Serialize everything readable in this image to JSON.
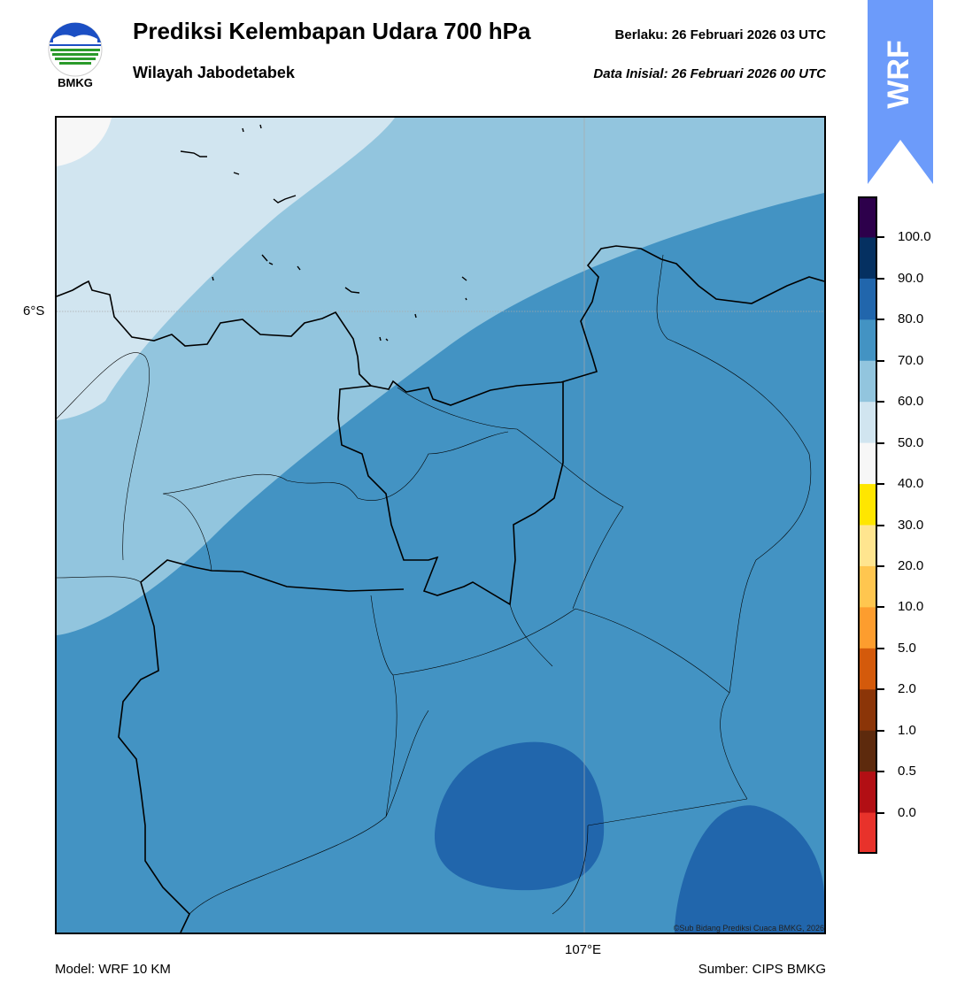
{
  "header": {
    "title": "Prediksi Kelembapan Udara 700 hPa",
    "subtitle": "Wilayah Jabodetabek",
    "valid_label": "Berlaku:  26 Februari 2026 03 UTC",
    "init_label": "Data Inisial:  26 Februari 2026 00 UTC"
  },
  "logo": {
    "text": "BMKG",
    "icon": "bmkg-logo-icon"
  },
  "badge": {
    "text": "WRF",
    "color": "#6c9bfa"
  },
  "map": {
    "lat_label": "6°S",
    "lon_label": "107°E",
    "credit": "©Sub Bidang Prediksi Cuaca BMKG, 2026",
    "fill_colors": {
      "very_light": "#f7f7f7",
      "light": "#d1e5f0",
      "mid": "#92c5de",
      "dark": "#4393c3",
      "darker": "#2166ac"
    }
  },
  "colorbar": {
    "labels": [
      "100.0",
      "90.0",
      "80.0",
      "70.0",
      "60.0",
      "50.0",
      "40.0",
      "30.0",
      "20.0",
      "10.0",
      "5.0",
      "2.0",
      "1.0",
      "0.5",
      "0.0"
    ],
    "colors": [
      "#2d004b",
      "#053061",
      "#2166ac",
      "#4393c3",
      "#92c5de",
      "#d1e5f0",
      "#f7f7f7",
      "#ffe600",
      "#ffe58f",
      "#ffc64f",
      "#fd9d2e",
      "#d45a0b",
      "#8b3508",
      "#5d2a0d",
      "#b20f14",
      "#e8322b"
    ]
  },
  "footer": {
    "model": "Model: WRF 10 KM",
    "source": "Sumber: CIPS BMKG"
  }
}
